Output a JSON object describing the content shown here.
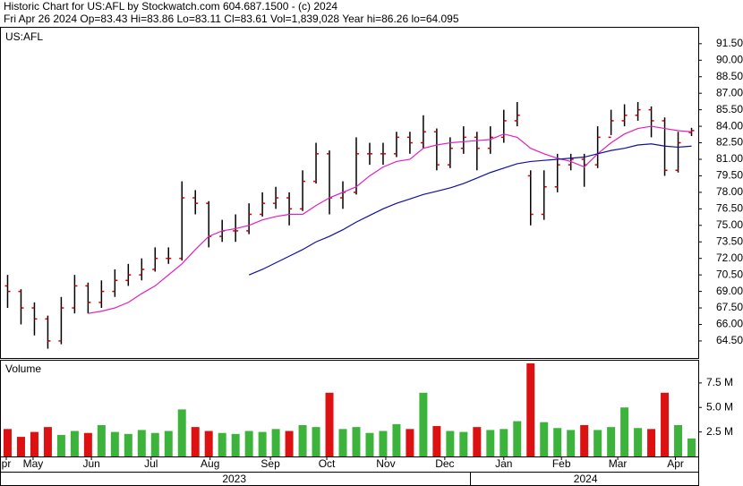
{
  "header": {
    "line1": "Historic Chart for US:AFL by Stockwatch.com 604.687.1500 - (c) 2024",
    "line2": "Fri Apr 26 2024   Op=83.43   Hi=83.86   Lo=83.11   Cl=83.61   Vol=1,839,028   Year hi=86.26   lo=64.095"
  },
  "chart_data": [
    {
      "type": "ohlc",
      "title": "US:AFL",
      "open": [
        69.5,
        69,
        67.5,
        66.5,
        64.5,
        67.5,
        69.5,
        68,
        69,
        70,
        70.5,
        71,
        72,
        72,
        77.5,
        77,
        74,
        74.5,
        74.5,
        76,
        77,
        77.5,
        76.5,
        79,
        81.5,
        77.5,
        78,
        81.5,
        81.5,
        81.5,
        83,
        82.5,
        83.5,
        80.5,
        82,
        83,
        82,
        83,
        84.5,
        79.5,
        76,
        78.5,
        80.5,
        81,
        80.5,
        83,
        84.5,
        85,
        85.5,
        84.5,
        80,
        83.43
      ],
      "high": [
        70.5,
        69.2,
        68,
        66.8,
        68.5,
        70.5,
        69.8,
        70,
        71,
        71.5,
        72,
        73,
        73,
        79,
        78.2,
        77.2,
        75.5,
        76,
        77,
        78,
        78.5,
        78,
        80,
        82.5,
        81.8,
        79,
        83,
        82.5,
        82.5,
        83.5,
        83.5,
        85,
        83.8,
        83,
        84,
        83.5,
        84,
        85.5,
        86.2,
        80,
        80,
        81.5,
        81.5,
        81.5,
        84,
        85.5,
        86,
        86.2,
        85.8,
        84.8,
        83.5,
        83.86
      ],
      "low": [
        67.5,
        66,
        65,
        63.8,
        64.2,
        67,
        67,
        67.5,
        68.5,
        69.5,
        70,
        70.8,
        71.5,
        71.8,
        76,
        73,
        73.5,
        73.5,
        74.2,
        75.8,
        76.5,
        75,
        76.3,
        78.8,
        76,
        76.5,
        77.8,
        80.5,
        80.5,
        81.2,
        81.5,
        82,
        80,
        80.2,
        81.5,
        80,
        81.5,
        82.5,
        84,
        75,
        75.5,
        78,
        80,
        78.5,
        80.2,
        83.2,
        84,
        84.5,
        83,
        79.5,
        79.8,
        83.11
      ],
      "close": [
        69,
        67.5,
        66.5,
        64.5,
        67.5,
        69.5,
        68,
        69,
        70,
        70.5,
        71,
        72,
        72,
        77.5,
        77,
        74,
        74.5,
        74.5,
        76,
        77,
        77.5,
        76.5,
        79,
        81.5,
        77.5,
        78,
        81.5,
        81.5,
        81.5,
        83,
        82.5,
        83.5,
        80.5,
        82,
        83,
        82,
        83,
        84.5,
        85,
        76,
        78.5,
        80.5,
        81,
        80.5,
        83,
        84.5,
        85,
        85.5,
        84.5,
        80,
        82.5,
        83.61
      ],
      "bar_color": "#000000",
      "tick_color": "#cc0000",
      "series": [
        {
          "color": "#e020c0",
          "values": [
            null,
            null,
            null,
            null,
            null,
            null,
            67,
            67.2,
            67.5,
            68,
            68.8,
            69.5,
            70.5,
            71.5,
            72.8,
            74,
            74.5,
            74.7,
            75,
            75.5,
            75.8,
            76,
            76,
            76.8,
            77.5,
            78,
            78.5,
            79.5,
            80.3,
            80.8,
            81,
            82,
            82.3,
            82.5,
            82.6,
            82.7,
            82.8,
            83.3,
            83,
            82,
            81.5,
            81.1,
            80.8,
            80.3,
            81.5,
            82.5,
            83.3,
            83.8,
            84,
            83.8,
            83.6,
            83.5
          ]
        },
        {
          "color": "#1010a0",
          "values": [
            null,
            null,
            null,
            null,
            null,
            null,
            null,
            null,
            null,
            null,
            null,
            null,
            null,
            null,
            null,
            null,
            null,
            null,
            70.5,
            71,
            71.6,
            72.2,
            72.8,
            73.5,
            74,
            74.6,
            75.3,
            75.9,
            76.5,
            77,
            77.4,
            77.8,
            78.1,
            78.4,
            78.8,
            79.3,
            79.8,
            80.2,
            80.6,
            80.8,
            80.9,
            81,
            81.1,
            81.2,
            81.5,
            81.8,
            82,
            82.3,
            82.4,
            82.2,
            82.1,
            82.2
          ]
        }
      ],
      "ylim": [
        62.95,
        92.95
      ],
      "yticks": [
        {
          "value": 64.5,
          "label": "64.50"
        },
        {
          "value": 66,
          "label": "66.00"
        },
        {
          "value": 67.5,
          "label": "67.50"
        },
        {
          "value": 69,
          "label": "69.00"
        },
        {
          "value": 70.5,
          "label": "70.50"
        },
        {
          "value": 72,
          "label": "72.00"
        },
        {
          "value": 73.5,
          "label": "73.50"
        },
        {
          "value": 75,
          "label": "75.00"
        },
        {
          "value": 76.5,
          "label": "76.50"
        },
        {
          "value": 78,
          "label": "78.00"
        },
        {
          "value": 79.5,
          "label": "79.50"
        },
        {
          "value": 81,
          "label": "81.00"
        },
        {
          "value": 82.5,
          "label": "82.50"
        },
        {
          "value": 84,
          "label": "84.00"
        },
        {
          "value": 85.5,
          "label": "85.50"
        },
        {
          "value": 87,
          "label": "87.00"
        },
        {
          "value": 88.5,
          "label": "88.50"
        },
        {
          "value": 90,
          "label": "90.00"
        },
        {
          "value": 91.5,
          "label": "91.50"
        }
      ],
      "xlim": [
        -0.5,
        51.5
      ],
      "xticks": [
        {
          "value": -0.1,
          "label": "pr"
        },
        {
          "value": 1.9,
          "label": "May"
        },
        {
          "value": 6.25,
          "label": "Jun"
        },
        {
          "value": 10.7,
          "label": "Jul"
        },
        {
          "value": 15.1,
          "label": "Aug"
        },
        {
          "value": 19.6,
          "label": "Sep"
        },
        {
          "value": 23.8,
          "label": "Oct"
        },
        {
          "value": 28.2,
          "label": "Nov"
        },
        {
          "value": 32.6,
          "label": "Dec"
        },
        {
          "value": 37,
          "label": "Jan"
        },
        {
          "value": 41.3,
          "label": "Feb"
        },
        {
          "value": 45.5,
          "label": "Mar"
        },
        {
          "value": 49.8,
          "label": "Apr"
        }
      ],
      "year_ticks": [
        {
          "value": 16.9,
          "label": "2023"
        },
        {
          "value": 43.1,
          "label": "2024"
        }
      ]
    },
    {
      "type": "volume",
      "title": "Volume",
      "values": [
        2.8,
        2.0,
        2.5,
        3.0,
        2.2,
        2.6,
        2.4,
        3.2,
        2.5,
        2.3,
        2.7,
        2.4,
        2.6,
        4.8,
        3.0,
        2.6,
        2.4,
        2.3,
        2.6,
        2.5,
        2.8,
        2.6,
        3.2,
        3.0,
        6.5,
        2.8,
        3.0,
        2.4,
        2.6,
        3.3,
        2.8,
        6.5,
        3.1,
        2.6,
        2.5,
        3.0,
        2.7,
        2.8,
        3.6,
        9.5,
        3.5,
        2.9,
        2.7,
        3.2,
        2.7,
        3.0,
        5.0,
        2.9,
        2.8,
        6.5,
        3.2,
        1.84
      ],
      "up_color": "#3cb43c",
      "down_color": "#dd1111",
      "ylim": [
        0,
        9.77
      ],
      "yticks": [
        {
          "value": 2.5,
          "label": "2.5 M"
        },
        {
          "value": 5,
          "label": "5.0 M"
        },
        {
          "value": 7.5,
          "label": "7.5 M"
        }
      ]
    }
  ]
}
